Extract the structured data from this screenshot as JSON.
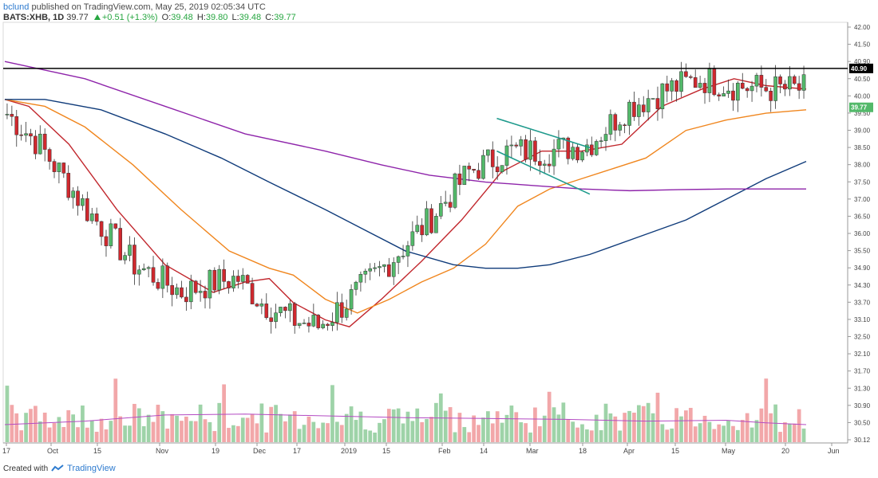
{
  "header": {
    "user": "bclund",
    "published": "published on TradingView.com, May 25, 2019 02:05:34 UTC",
    "symbol": "BATS:XHB, 1D",
    "last": "39.77",
    "change": "+0.51 (+1.3%)",
    "o_label": "O:",
    "o_val": "39.48",
    "h_label": "H:",
    "h_val": "39.80",
    "l_label": "L:",
    "l_val": "39.48",
    "c_label": "C:",
    "c_val": "39.77"
  },
  "footer": {
    "created_with": "Created with",
    "brand": "TradingView"
  },
  "colors": {
    "up": "#53b96a",
    "down": "#d0282e",
    "up_vol": "#9ed3a8",
    "down_vol": "#f2a7a9",
    "ma_red": "#c1272d",
    "ma_orange": "#f0861e",
    "ma_navy": "#0f3b7a",
    "ma_purple": "#8e24aa",
    "vol_ma": "#b44bc3",
    "channel": "#1e9a8c",
    "resistance": "#000000"
  },
  "chart_data": {
    "type": "candlestick",
    "ylim": [
      30.12,
      42.1
    ],
    "y_ticks": [
      "42.00",
      "41.50",
      "40.90",
      "40.50",
      "40.00",
      "39.50",
      "39.00",
      "38.50",
      "38.00",
      "37.50",
      "37.00",
      "36.50",
      "36.00",
      "35.50",
      "34.90",
      "34.30",
      "33.70",
      "33.10",
      "32.50",
      "32.10",
      "31.70",
      "31.30",
      "30.90",
      "30.50",
      "30.12"
    ],
    "x_ticks": [
      "17",
      "Oct",
      "15",
      "Nov",
      "19",
      "Dec",
      "17",
      "2019",
      "15",
      "Feb",
      "14",
      "Mar",
      "18",
      "Apr",
      "15",
      "May",
      "20",
      "Jun"
    ],
    "price_tags": [
      "40.90",
      "39.77"
    ],
    "resistance_level": 40.9,
    "moving_averages": [
      {
        "color_key": "ma_red",
        "points": [
          [
            0,
            40.0
          ],
          [
            0.03,
            39.8
          ],
          [
            0.08,
            38.7
          ],
          [
            0.14,
            36.8
          ],
          [
            0.2,
            35.2
          ],
          [
            0.26,
            34.4
          ],
          [
            0.3,
            34.7
          ],
          [
            0.33,
            34.8
          ],
          [
            0.36,
            34.1
          ],
          [
            0.4,
            33.6
          ],
          [
            0.43,
            33.4
          ],
          [
            0.47,
            34.2
          ],
          [
            0.52,
            35.3
          ],
          [
            0.57,
            36.5
          ],
          [
            0.62,
            37.9
          ],
          [
            0.67,
            38.5
          ],
          [
            0.72,
            38.5
          ],
          [
            0.77,
            38.7
          ],
          [
            0.82,
            39.8
          ],
          [
            0.87,
            40.3
          ],
          [
            0.91,
            40.6
          ],
          [
            0.95,
            40.4
          ],
          [
            1.0,
            40.3
          ]
        ]
      },
      {
        "color_key": "ma_orange",
        "points": [
          [
            0,
            40.0
          ],
          [
            0.05,
            39.8
          ],
          [
            0.1,
            39.2
          ],
          [
            0.16,
            38.1
          ],
          [
            0.22,
            36.8
          ],
          [
            0.28,
            35.6
          ],
          [
            0.33,
            35.1
          ],
          [
            0.36,
            34.9
          ],
          [
            0.4,
            34.2
          ],
          [
            0.44,
            33.8
          ],
          [
            0.48,
            34.2
          ],
          [
            0.52,
            34.7
          ],
          [
            0.56,
            35.1
          ],
          [
            0.6,
            35.8
          ],
          [
            0.64,
            36.9
          ],
          [
            0.68,
            37.4
          ],
          [
            0.72,
            37.7
          ],
          [
            0.76,
            38.0
          ],
          [
            0.8,
            38.3
          ],
          [
            0.85,
            39.1
          ],
          [
            0.9,
            39.4
          ],
          [
            0.95,
            39.6
          ],
          [
            1.0,
            39.7
          ]
        ]
      },
      {
        "color_key": "ma_navy",
        "points": [
          [
            0,
            40.0
          ],
          [
            0.05,
            40.0
          ],
          [
            0.12,
            39.7
          ],
          [
            0.2,
            39.0
          ],
          [
            0.27,
            38.3
          ],
          [
            0.33,
            37.6
          ],
          [
            0.4,
            36.8
          ],
          [
            0.45,
            36.2
          ],
          [
            0.5,
            35.6
          ],
          [
            0.56,
            35.2
          ],
          [
            0.6,
            35.1
          ],
          [
            0.64,
            35.1
          ],
          [
            0.68,
            35.2
          ],
          [
            0.73,
            35.5
          ],
          [
            0.79,
            36.0
          ],
          [
            0.85,
            36.5
          ],
          [
            0.9,
            37.1
          ],
          [
            0.95,
            37.7
          ],
          [
            1.0,
            38.2
          ]
        ]
      },
      {
        "color_key": "ma_purple",
        "points": [
          [
            0,
            41.1
          ],
          [
            0.1,
            40.6
          ],
          [
            0.2,
            39.8
          ],
          [
            0.3,
            39.0
          ],
          [
            0.4,
            38.5
          ],
          [
            0.47,
            38.1
          ],
          [
            0.53,
            37.8
          ],
          [
            0.6,
            37.6
          ],
          [
            0.66,
            37.5
          ],
          [
            0.72,
            37.4
          ],
          [
            0.78,
            37.35
          ],
          [
            0.84,
            37.38
          ],
          [
            0.9,
            37.4
          ],
          [
            0.95,
            37.4
          ],
          [
            1.0,
            37.4
          ]
        ]
      }
    ],
    "channel_lines": [
      {
        "x1": 0.614,
        "y1": 39.45,
        "x2": 0.73,
        "y2": 38.6
      },
      {
        "x1": 0.614,
        "y1": 38.5,
        "x2": 0.73,
        "y2": 37.25
      }
    ],
    "volume_ma": [
      [
        0,
        0.2
      ],
      [
        0.1,
        0.24
      ],
      [
        0.2,
        0.31
      ],
      [
        0.3,
        0.32
      ],
      [
        0.4,
        0.3
      ],
      [
        0.5,
        0.28
      ],
      [
        0.6,
        0.27
      ],
      [
        0.7,
        0.26
      ],
      [
        0.8,
        0.24
      ],
      [
        0.9,
        0.25
      ],
      [
        0.95,
        0.22
      ],
      [
        1.0,
        0.2
      ]
    ],
    "ohlc_seed": "XHB daily Sep 2018 - May 2019"
  }
}
